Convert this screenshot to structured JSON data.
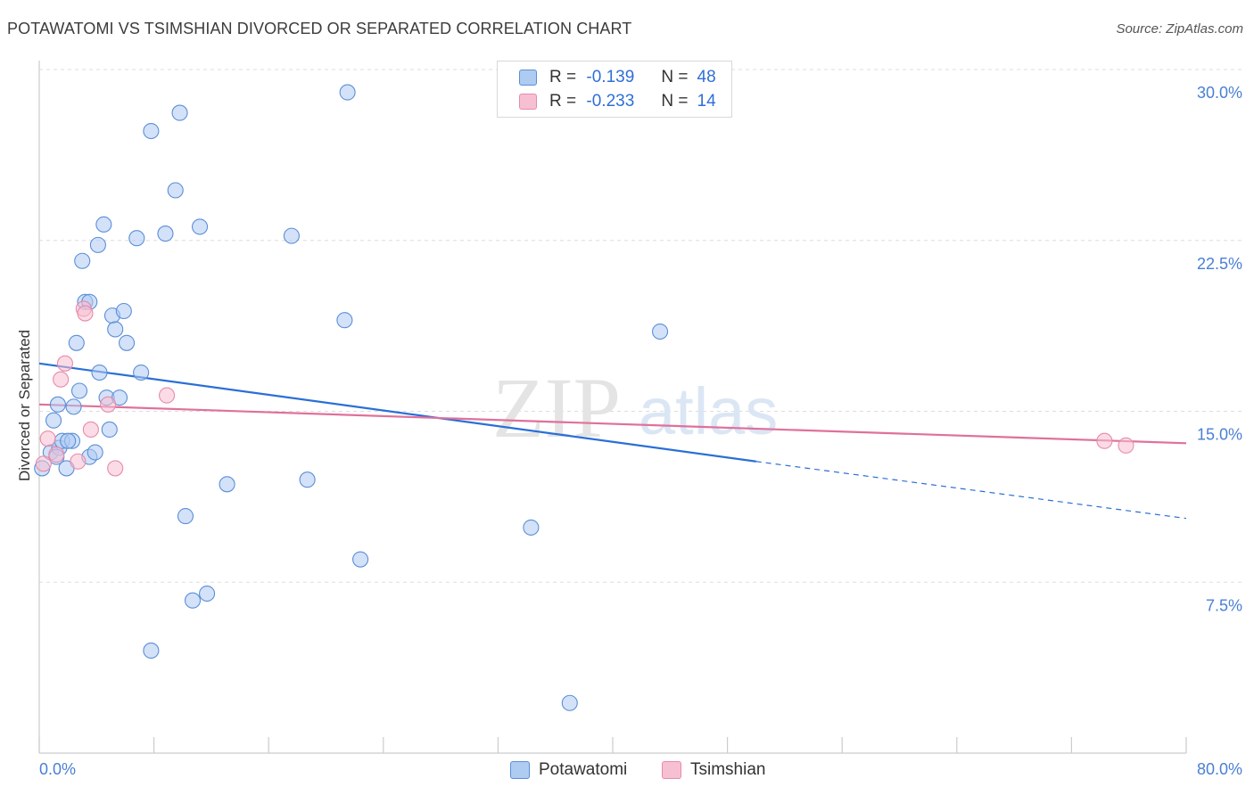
{
  "title": "POTAWATOMI VS TSIMSHIAN DIVORCED OR SEPARATED CORRELATION CHART",
  "source": "Source: ZipAtlas.com",
  "watermark": {
    "zip": "ZIP",
    "atlas": "atlas"
  },
  "legend": {
    "series1": {
      "r_label": "R =",
      "r_value": "-0.139",
      "n_label": "N =",
      "n_value": "48"
    },
    "series2": {
      "r_label": "R =",
      "r_value": "-0.233",
      "n_label": "N =",
      "n_value": "14"
    }
  },
  "bottom_legend": {
    "series1": "Potawatomi",
    "series2": "Tsimshian"
  },
  "colors": {
    "blue_fill": "#aecbf2",
    "blue_stroke": "#5b8ed8",
    "blue_line": "#2a6fd6",
    "pink_fill": "#f7c0d2",
    "pink_stroke": "#e88aa8",
    "pink_line": "#e0709a",
    "grid": "#dddddd",
    "axis_text": "#4a7fd4"
  },
  "chart_data": {
    "type": "scatter",
    "title": "POTAWATOMI VS TSIMSHIAN DIVORCED OR SEPARATED CORRELATION CHART",
    "xlabel": "",
    "ylabel": "Divorced or Separated",
    "xlim": [
      0,
      80
    ],
    "ylim": [
      0,
      30
    ],
    "x_tick_labels": [
      "0.0%",
      "80.0%"
    ],
    "y_ticks": [
      7.5,
      15.0,
      22.5,
      30.0
    ],
    "y_tick_labels": [
      "7.5%",
      "15.0%",
      "22.5%",
      "30.0%"
    ],
    "series": [
      {
        "name": "Potawatomi",
        "r": -0.139,
        "n": 48,
        "trend": {
          "x_start": 0,
          "y_start": 17.1,
          "x_end": 50,
          "y_end": 12.8,
          "dashed_to_x": 80,
          "dashed_to_y": 10.3
        },
        "points": [
          [
            0.2,
            12.5
          ],
          [
            0.8,
            13.2
          ],
          [
            1.0,
            14.6
          ],
          [
            1.4,
            13.4
          ],
          [
            1.6,
            13.7
          ],
          [
            1.3,
            15.3
          ],
          [
            1.9,
            12.5
          ],
          [
            2.4,
            15.2
          ],
          [
            2.3,
            13.7
          ],
          [
            2.8,
            15.9
          ],
          [
            2.6,
            18.0
          ],
          [
            3.0,
            21.6
          ],
          [
            3.2,
            19.8
          ],
          [
            3.5,
            19.8
          ],
          [
            3.5,
            13.0
          ],
          [
            3.9,
            13.2
          ],
          [
            4.2,
            16.7
          ],
          [
            4.1,
            22.3
          ],
          [
            4.5,
            23.2
          ],
          [
            4.7,
            15.6
          ],
          [
            4.9,
            14.2
          ],
          [
            5.1,
            19.2
          ],
          [
            5.3,
            18.6
          ],
          [
            5.6,
            15.6
          ],
          [
            5.9,
            19.4
          ],
          [
            6.1,
            18.0
          ],
          [
            6.8,
            22.6
          ],
          [
            7.1,
            16.7
          ],
          [
            7.8,
            27.3
          ],
          [
            8.8,
            22.8
          ],
          [
            9.5,
            24.7
          ],
          [
            9.8,
            28.1
          ],
          [
            10.2,
            10.4
          ],
          [
            10.7,
            6.7
          ],
          [
            11.2,
            23.1
          ],
          [
            11.7,
            7.0
          ],
          [
            13.1,
            11.8
          ],
          [
            17.6,
            22.7
          ],
          [
            18.7,
            12.0
          ],
          [
            21.3,
            19.0
          ],
          [
            21.5,
            29.0
          ],
          [
            22.4,
            8.5
          ],
          [
            34.3,
            9.9
          ],
          [
            37.0,
            2.2
          ],
          [
            43.3,
            18.5
          ],
          [
            7.8,
            4.5
          ],
          [
            2.0,
            13.7
          ],
          [
            1.2,
            13.0
          ]
        ]
      },
      {
        "name": "Tsimshian",
        "r": -0.233,
        "n": 14,
        "trend": {
          "x_start": 0,
          "y_start": 15.3,
          "x_end": 80,
          "y_end": 13.6
        },
        "points": [
          [
            0.6,
            13.8
          ],
          [
            1.2,
            13.1
          ],
          [
            1.5,
            16.4
          ],
          [
            1.8,
            17.1
          ],
          [
            2.7,
            12.8
          ],
          [
            3.1,
            19.5
          ],
          [
            3.2,
            19.3
          ],
          [
            3.6,
            14.2
          ],
          [
            4.8,
            15.3
          ],
          [
            5.3,
            12.5
          ],
          [
            8.9,
            15.7
          ],
          [
            74.3,
            13.7
          ],
          [
            75.8,
            13.5
          ],
          [
            0.3,
            12.7
          ]
        ]
      }
    ]
  }
}
